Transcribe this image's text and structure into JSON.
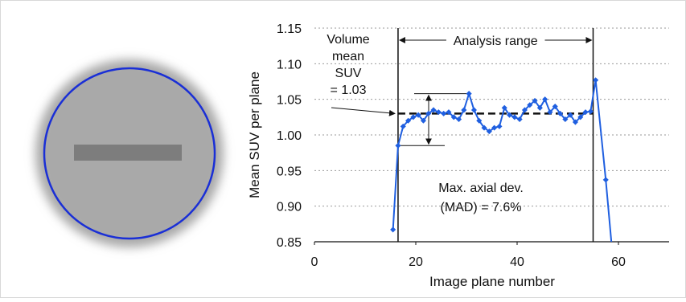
{
  "chart_data": {
    "type": "line",
    "x_label": "Image plane number",
    "y_label": "Mean SUV per plane",
    "x": [
      15.5,
      16.5,
      17.5,
      18.5,
      19.5,
      20.5,
      21.5,
      22.5,
      23.5,
      24.5,
      25.5,
      26.5,
      27.5,
      28.5,
      29.5,
      30.5,
      31.5,
      32.5,
      33.5,
      34.5,
      35.5,
      36.5,
      37.5,
      38.5,
      39.5,
      40.5,
      41.5,
      42.5,
      43.5,
      44.5,
      45.5,
      46.5,
      47.5,
      48.5,
      49.5,
      50.5,
      51.5,
      52.5,
      53.5,
      54.5,
      55.5,
      57.5,
      58.6
    ],
    "series": [
      {
        "color": "#1f5fe0",
        "values": [
          0.867,
          0.985,
          1.012,
          1.02,
          1.025,
          1.028,
          1.02,
          1.03,
          1.035,
          1.032,
          1.03,
          1.032,
          1.025,
          1.022,
          1.035,
          1.058,
          1.035,
          1.02,
          1.01,
          1.005,
          1.01,
          1.012,
          1.038,
          1.028,
          1.025,
          1.022,
          1.035,
          1.042,
          1.048,
          1.038,
          1.05,
          1.032,
          1.04,
          1.03,
          1.022,
          1.028,
          1.018,
          1.025,
          1.032,
          1.033,
          1.077,
          0.937,
          0.85
        ]
      }
    ],
    "xlim": [
      0,
      70
    ],
    "xticks": [
      0,
      20,
      40,
      60
    ],
    "ylim": [
      0.85,
      1.15
    ],
    "yticks": [
      {
        "value": 0.85,
        "label": "0.85"
      },
      {
        "value": 0.9,
        "label": "0.90"
      },
      {
        "value": 0.95,
        "label": "0.95"
      },
      {
        "value": 1.0,
        "label": "1.00"
      },
      {
        "value": 1.05,
        "label": "1.05"
      },
      {
        "value": 1.1,
        "label": "1.10"
      },
      {
        "value": 1.15,
        "label": "1.15"
      }
    ],
    "grid": true,
    "mean_value": 1.03,
    "analysis_range": [
      16.5,
      55
    ],
    "annotations": {
      "mean_label": [
        "Volume",
        "mean",
        "SUV",
        "= 1.03"
      ],
      "range_label": "Analysis range",
      "mad_label": [
        "Max. axial dev.",
        "(MAD) = 7.6%"
      ]
    }
  }
}
